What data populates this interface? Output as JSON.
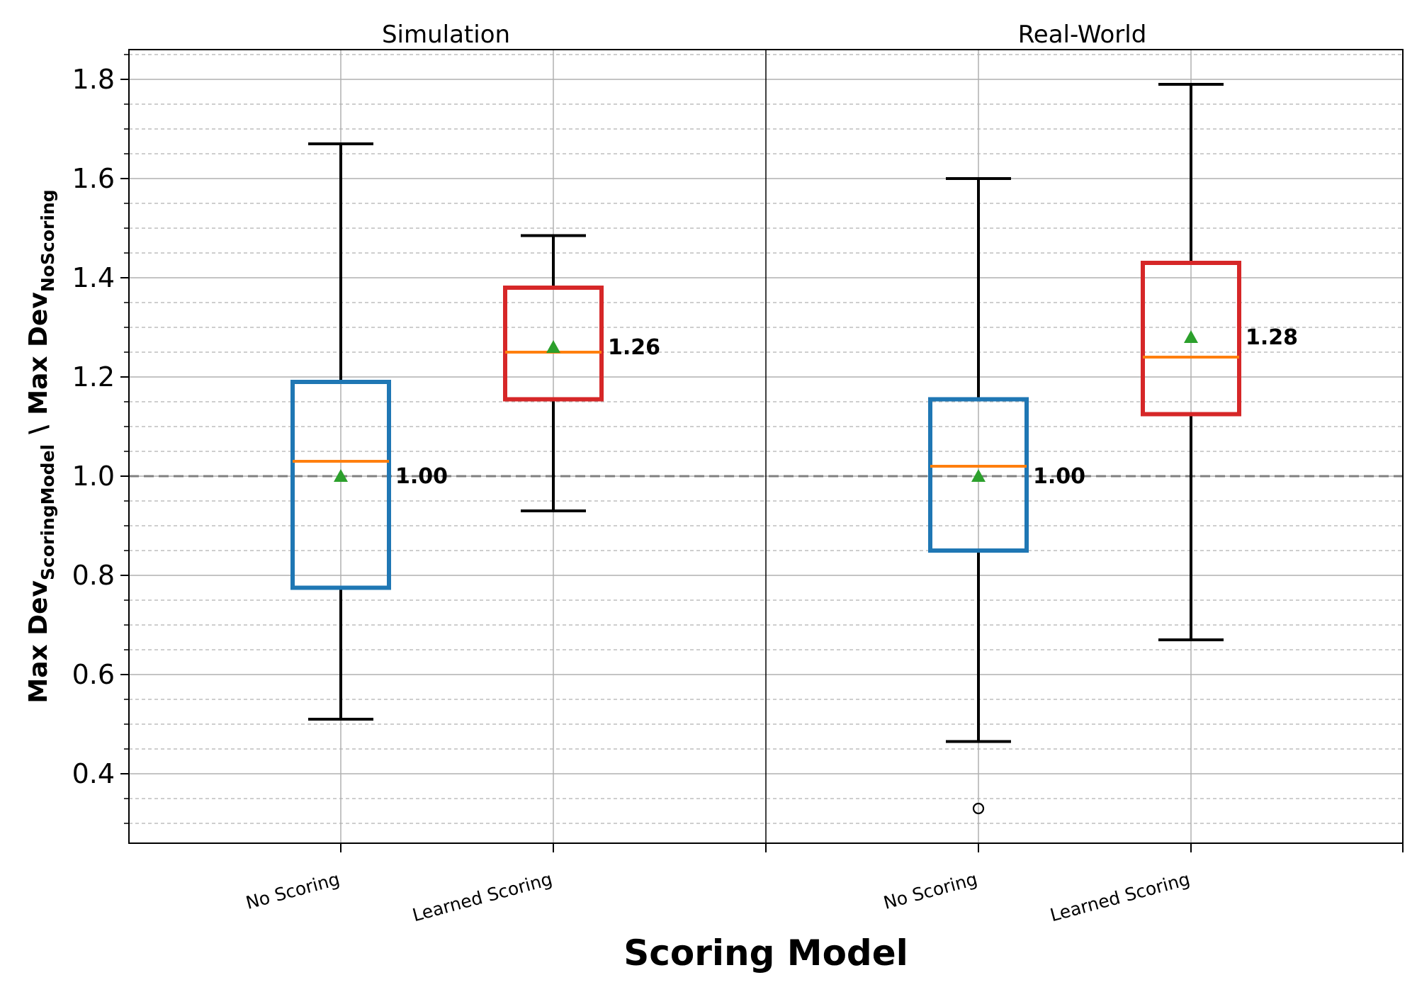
{
  "chart_data": {
    "type": "box",
    "y_axis": {
      "label_main": "Max Dev",
      "label_sub_top": "ScoringModel",
      "separator": "\\",
      "label_sub_bottom": "NoScoring",
      "ylim": [
        0.26,
        1.86
      ],
      "ticks": [
        0.4,
        0.6,
        0.8,
        1.0,
        1.2,
        1.4,
        1.6,
        1.8
      ],
      "tick_labels": [
        "0.4",
        "0.6",
        "0.8",
        "1.0",
        "1.2",
        "1.4",
        "1.6",
        "1.8"
      ],
      "minor_step": 0.05,
      "grid": true
    },
    "xlabel": "Scoring Model",
    "reference_line": {
      "value": 1.0,
      "color": "#808080",
      "style": "dashed"
    },
    "panels": [
      {
        "title": "Simulation",
        "boxes": [
          {
            "category": "No Scoring",
            "color": "#1f77b4",
            "whisker_low": 0.51,
            "q1": 0.775,
            "median": 1.03,
            "q3": 1.19,
            "whisker_high": 1.67,
            "mean": 1.0,
            "mean_label": "1.00",
            "outliers": []
          },
          {
            "category": "Learned Scoring",
            "color": "#d62728",
            "whisker_low": 0.93,
            "q1": 1.155,
            "median": 1.25,
            "q3": 1.38,
            "whisker_high": 1.485,
            "mean": 1.26,
            "mean_label": "1.26",
            "outliers": []
          }
        ]
      },
      {
        "title": "Real-World",
        "boxes": [
          {
            "category": "No Scoring",
            "color": "#1f77b4",
            "whisker_low": 0.465,
            "q1": 0.85,
            "median": 1.02,
            "q3": 1.155,
            "whisker_high": 1.6,
            "mean": 1.0,
            "mean_label": "1.00",
            "outliers": [
              0.33
            ]
          },
          {
            "category": "Learned Scoring",
            "color": "#d62728",
            "whisker_low": 0.67,
            "q1": 1.125,
            "median": 1.24,
            "q3": 1.43,
            "whisker_high": 1.79,
            "mean": 1.28,
            "mean_label": "1.28",
            "outliers": []
          }
        ]
      }
    ],
    "median_color": "#ff7f0e",
    "mean_marker_color": "#2ca02c"
  }
}
